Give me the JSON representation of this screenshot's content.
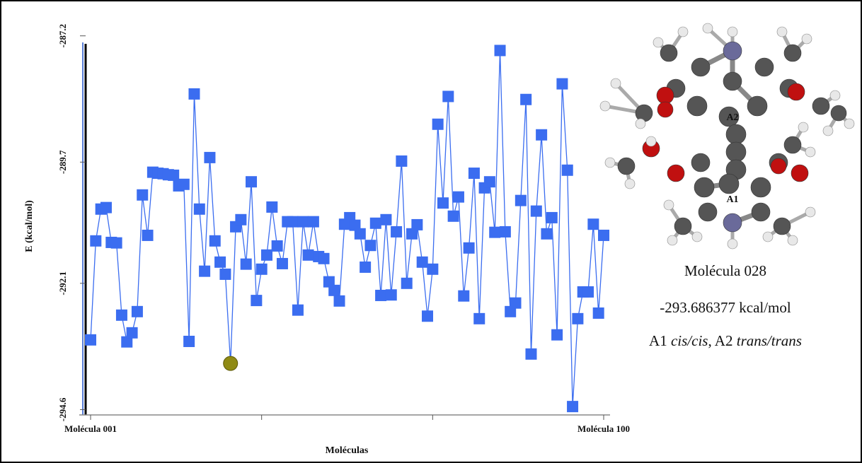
{
  "chart_data": {
    "type": "line",
    "ylabel": "E (kcal/mol)",
    "xlabel": "Moléculas",
    "x": [
      1,
      2,
      3,
      4,
      5,
      6,
      7,
      8,
      9,
      10,
      11,
      12,
      13,
      14,
      15,
      16,
      17,
      18,
      19,
      20,
      21,
      22,
      23,
      24,
      25,
      26,
      27,
      28,
      29,
      30,
      31,
      32,
      33,
      34,
      35,
      36,
      37,
      38,
      39,
      40,
      41,
      42,
      43,
      44,
      45,
      46,
      47,
      48,
      49,
      50,
      51,
      52,
      53,
      54,
      55,
      56,
      57,
      58,
      59,
      60,
      61,
      62,
      63,
      64,
      65,
      66,
      67,
      68,
      69,
      70,
      71,
      72,
      73,
      74,
      75,
      76,
      77,
      78,
      79,
      80,
      81,
      82,
      83,
      84,
      85,
      86,
      87,
      88,
      89,
      90,
      91,
      92,
      93,
      94,
      95,
      96,
      97,
      98,
      99,
      100
    ],
    "series": [
      {
        "color": "#3b6df0",
        "values": [
          -293.22,
          -291.26,
          -290.63,
          -290.6,
          -291.29,
          -291.3,
          -292.73,
          -293.26,
          -293.08,
          -292.66,
          -290.35,
          -291.15,
          -289.9,
          -289.92,
          -289.93,
          -289.95,
          -289.96,
          -290.17,
          -290.14,
          -293.25,
          -288.35,
          -290.63,
          -291.86,
          -289.61,
          -291.26,
          -291.68,
          -291.92,
          -293.686377,
          -290.98,
          -290.84,
          -291.72,
          -290.09,
          -292.44,
          -291.82,
          -291.54,
          -290.59,
          -291.36,
          -291.71,
          -290.88,
          -290.88,
          -292.63,
          -290.88,
          -291.54,
          -290.88,
          -291.57,
          -291.61,
          -292.07,
          -292.24,
          -292.45,
          -290.93,
          -290.8,
          -290.95,
          -291.12,
          -291.78,
          -291.35,
          -290.91,
          -292.34,
          -290.84,
          -292.33,
          -291.08,
          -289.68,
          -292.1,
          -291.12,
          -290.94,
          -291.68,
          -292.75,
          -291.82,
          -288.95,
          -290.51,
          -288.4,
          -290.77,
          -290.39,
          -292.35,
          -291.4,
          -289.92,
          -292.8,
          -290.21,
          -290.09,
          -291.09,
          -287.49,
          -291.08,
          -292.66,
          -292.49,
          -290.46,
          -288.46,
          -293.5,
          -290.67,
          -289.16,
          -291.12,
          -290.8,
          -293.12,
          -288.15,
          -289.86,
          -294.54,
          -292.8,
          -292.27,
          -292.27,
          -290.93,
          -292.69,
          -291.15
        ]
      }
    ],
    "highlight_point": 28,
    "highlight_color": "#8f8a14",
    "xlim": [
      1,
      100
    ],
    "xticks": [
      {
        "value": 1,
        "label": "Molécula 001"
      },
      {
        "value": 100,
        "label": "Molécula 100"
      }
    ],
    "xticks_minor": [
      34,
      67
    ],
    "ylim": [
      -294.65,
      -287.05
    ],
    "yticks": [
      -287.2,
      -289.7,
      -292.1,
      -294.6
    ],
    "annotations": {
      "ring_labels": [
        "A2",
        "A1"
      ],
      "name": "Molécula 028",
      "energy": "-293.686377 kcal/mol",
      "conformation": [
        "A1 ",
        "cis/cis",
        ", A2 ",
        "trans/trans"
      ]
    }
  }
}
